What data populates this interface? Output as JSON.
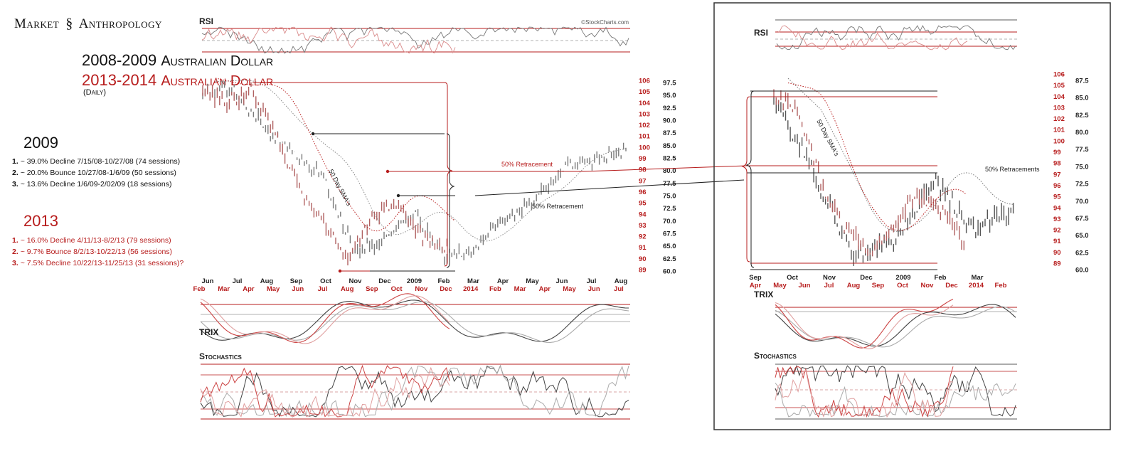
{
  "brand": {
    "left": "Market",
    "right": "Anthropology"
  },
  "title_line1": {
    "years": "2008-2009",
    "name": "Australian Dollar"
  },
  "title_line2": {
    "years": "2013-2014",
    "name": "Australian Dollar"
  },
  "subtitle": "(Daily)",
  "source": "©StockCharts.com",
  "year2009": {
    "heading": "2009",
    "notes": [
      {
        "n": "1.",
        "text": "~ 39.0% Decline 7/15/08-10/27/08 (74 sessions)"
      },
      {
        "n": "2.",
        "text": "~ 20.0% Bounce 10/27/08-1/6/09 (50 sessions)"
      },
      {
        "n": "3.",
        "text": "~ 13.6% Decline 1/6/09-2/02/09 (18 sessions)"
      }
    ]
  },
  "year2013": {
    "heading": "2013",
    "notes": [
      {
        "n": "1.",
        "text": "~ 16.0% Decline 4/11/13-8/2/13 (79 sessions)"
      },
      {
        "n": "2.",
        "text": "~  9.7% Bounce 8/2/13-10/22/13 (56 sessions)"
      },
      {
        "n": "3.",
        "text": "~  7.5% Decline 10/22/13-11/25/13 (31 sessions)?"
      }
    ]
  },
  "chart_data": [
    {
      "type": "line",
      "panel": "left-overview",
      "indicator_labels": [
        "RSI",
        "TRIX",
        "Stochastics"
      ],
      "annotations": [
        "50 Day SMA's",
        "50% Retracement",
        "50% Retracement"
      ],
      "y_right_black": {
        "ticks": [
          97.5,
          95.0,
          92.5,
          90.0,
          87.5,
          85.0,
          82.5,
          80.0,
          77.5,
          75.0,
          72.5,
          70.0,
          67.5,
          65.0,
          62.5,
          60.0
        ],
        "ylim": [
          60,
          97.5
        ]
      },
      "y_right_red": {
        "ticks": [
          106,
          105,
          104,
          103,
          102,
          101,
          100,
          99,
          98,
          97,
          96,
          95,
          94,
          93,
          92,
          91,
          90,
          89
        ],
        "ylim": [
          89,
          106
        ]
      },
      "x_black_months": [
        "Jun",
        "Jul",
        "Aug",
        "Sep",
        "Oct",
        "Nov",
        "Dec",
        "2009",
        "Feb",
        "Mar",
        "Apr",
        "May",
        "Jun",
        "Jul",
        "Aug"
      ],
      "x_red_months": [
        "Feb",
        "Mar",
        "Apr",
        "May",
        "Jun",
        "Jul",
        "Aug",
        "Sep",
        "Oct",
        "Nov",
        "Dec",
        "2014",
        "Feb",
        "Mar",
        "Apr",
        "May",
        "Jun",
        "Jul"
      ],
      "series": [
        {
          "name": "2008-2009",
          "color": "#555555",
          "x": [
            "Jun",
            "Jul",
            "Aug",
            "Sep",
            "Oct",
            "Nov",
            "Dec",
            "2009",
            "Feb",
            "Mar",
            "Apr",
            "May",
            "Jun",
            "Jul",
            "Aug"
          ],
          "values": [
            95.5,
            96.0,
            89.0,
            83.0,
            79.0,
            64.0,
            66.0,
            71.5,
            63.0,
            64.5,
            71.0,
            74.0,
            81.0,
            82.0,
            84.0
          ]
        },
        {
          "name": "2013-2014",
          "color": "#b03a3a",
          "x": [
            "Feb",
            "Mar",
            "Apr",
            "May",
            "Jun",
            "Jul",
            "Aug",
            "Sep",
            "Oct",
            "Nov",
            "Dec"
          ],
          "values": [
            105,
            104,
            105,
            101,
            96,
            93,
            90,
            94,
            95,
            92,
            91
          ]
        }
      ]
    },
    {
      "type": "line",
      "panel": "right-zoom",
      "indicator_labels": [
        "RSI",
        "TRIX",
        "Stochastics"
      ],
      "annotations": [
        "50 Day SMA's",
        "50% Retracements"
      ],
      "y_right_black": {
        "ticks": [
          87.5,
          85.0,
          82.5,
          80.0,
          77.5,
          75.0,
          72.5,
          70.0,
          67.5,
          65.0,
          62.5,
          60.0
        ],
        "ylim": [
          60,
          87.5
        ]
      },
      "y_right_red": {
        "ticks": [
          106,
          105,
          104,
          103,
          102,
          101,
          100,
          99,
          98,
          97,
          96,
          95,
          94,
          93,
          92,
          91,
          90,
          89
        ],
        "ylim": [
          89,
          106
        ]
      },
      "x_black_months": [
        "Sep",
        "Oct",
        "Nov",
        "Dec",
        "2009",
        "Feb",
        "Mar"
      ],
      "x_red_months": [
        "Apr",
        "May",
        "Jun",
        "Jul",
        "Aug",
        "Sep",
        "Oct",
        "Nov",
        "Dec",
        "2014",
        "Feb"
      ],
      "series": [
        {
          "name": "2008-2009",
          "color": "#555555",
          "x": [
            "Sep",
            "Oct",
            "Nov",
            "Dec",
            "2009",
            "Feb",
            "Mar"
          ],
          "values": [
            85.0,
            74.0,
            62.0,
            64.0,
            73.0,
            66.0,
            68.0
          ]
        },
        {
          "name": "2013-2014",
          "color": "#b03a3a",
          "x": [
            "Apr",
            "May",
            "Jun",
            "Jul",
            "Aug",
            "Sep",
            "Oct",
            "Nov",
            "Dec"
          ],
          "values": [
            104,
            103,
            96,
            92,
            90,
            92,
            95,
            94,
            91
          ]
        }
      ]
    }
  ]
}
